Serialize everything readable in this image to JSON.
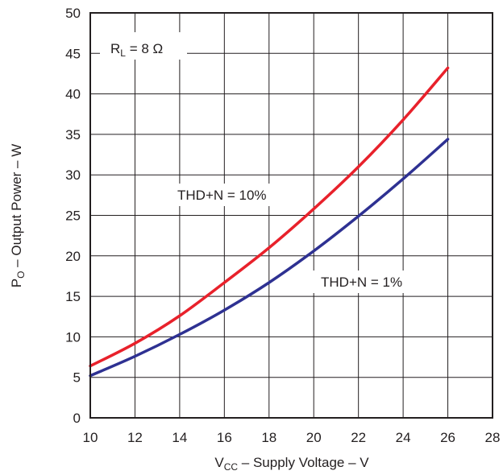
{
  "chart_data": {
    "type": "line",
    "xlabel": {
      "main": "V",
      "sub": "CC",
      "rest": " – Supply Voltage – V"
    },
    "ylabel": {
      "main": "P",
      "sub": "O",
      "rest": " – Output Power – W"
    },
    "xlim": [
      10,
      28
    ],
    "ylim": [
      0,
      50
    ],
    "x_ticks": [
      "10",
      "12",
      "14",
      "16",
      "18",
      "20",
      "22",
      "24",
      "26",
      "28"
    ],
    "y_ticks": [
      "0",
      "5",
      "10",
      "15",
      "20",
      "25",
      "30",
      "35",
      "40",
      "45",
      "50"
    ],
    "grid": true,
    "condition_label": {
      "main": "R",
      "sub": "L",
      "rest": " = 8 Ω"
    },
    "series": [
      {
        "name": "THD+N = 10%",
        "color": "#e8212b",
        "x": [
          10,
          12,
          14,
          16,
          18,
          20,
          22,
          24,
          26
        ],
        "values": [
          6.4,
          9.2,
          12.6,
          16.7,
          21.0,
          25.8,
          31.0,
          36.8,
          43.2
        ]
      },
      {
        "name": "THD+N = 1%",
        "color": "#2e3192",
        "x": [
          10,
          12,
          14,
          16,
          18,
          20,
          22,
          24,
          26
        ],
        "values": [
          5.2,
          7.6,
          10.3,
          13.3,
          16.7,
          20.6,
          24.9,
          29.5,
          34.4
        ]
      }
    ]
  }
}
